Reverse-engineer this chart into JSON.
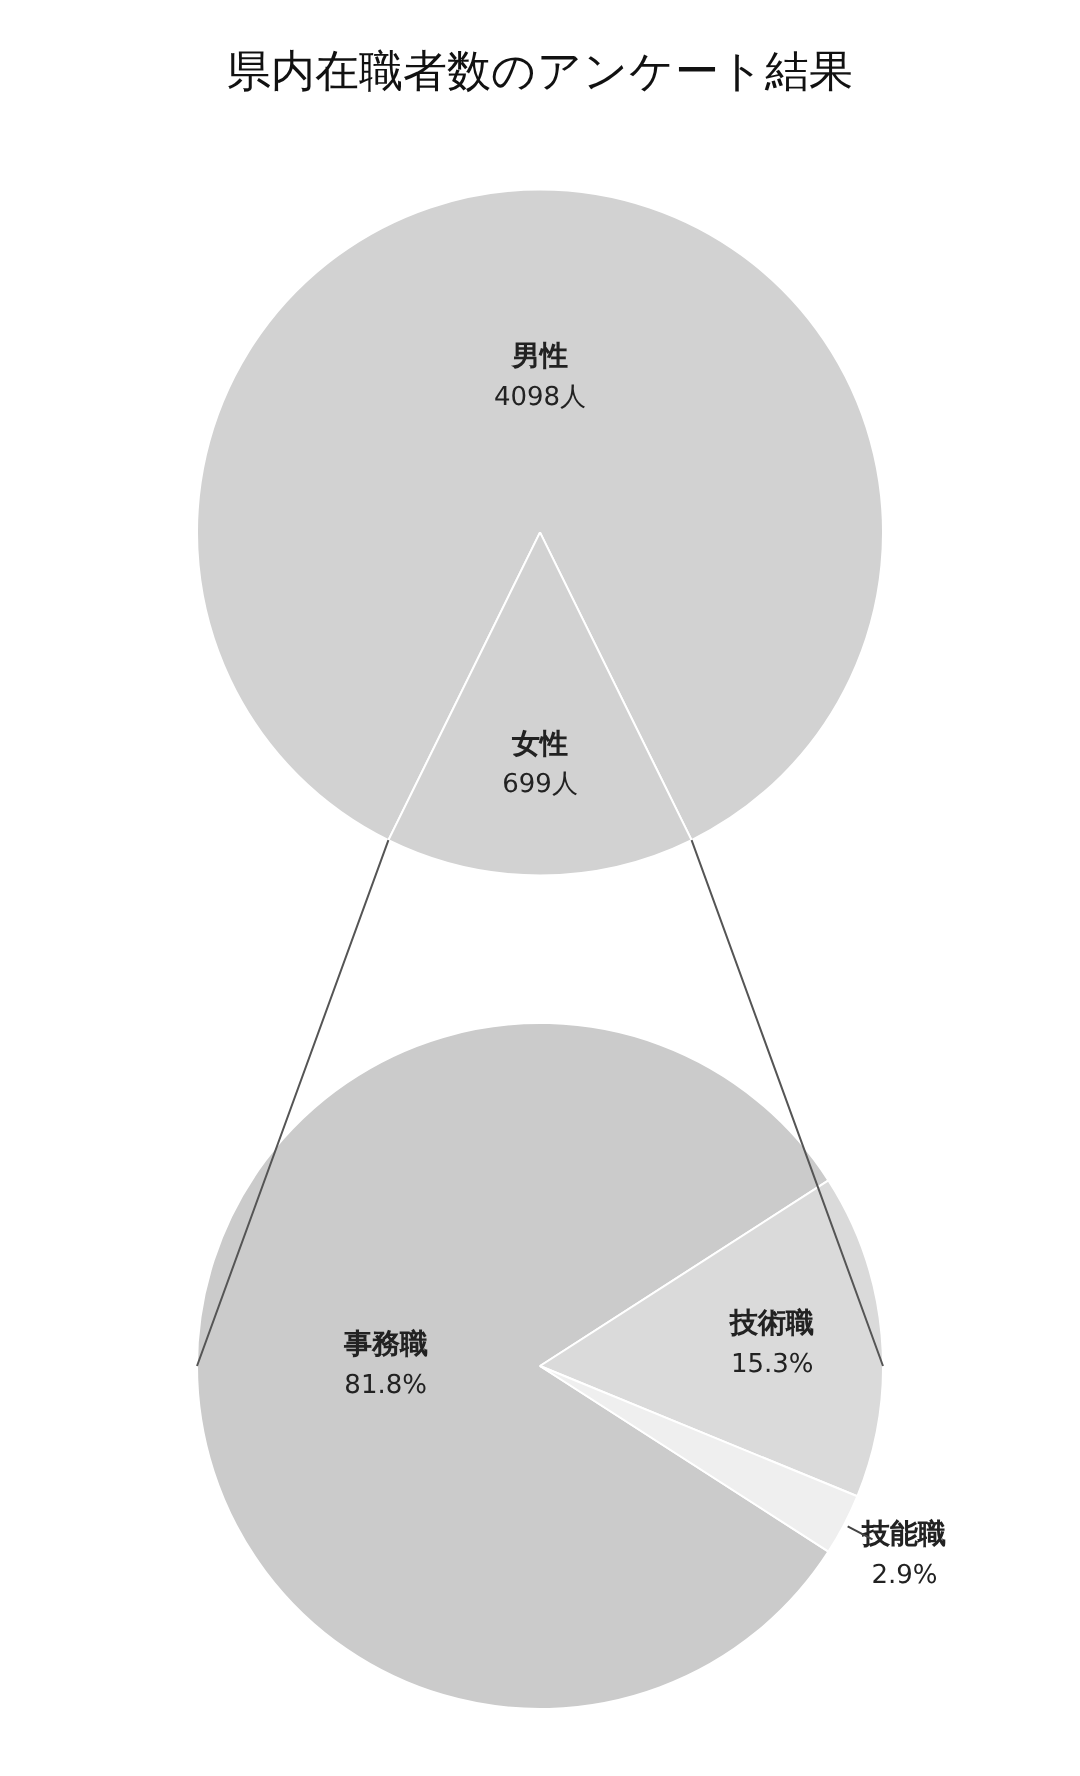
{
  "chart_data": [
    {
      "type": "pie",
      "title": "県内在職者数のアンケート結果",
      "categories": [
        "男性",
        "女性"
      ],
      "values": [
        4098,
        699
      ],
      "value_labels": [
        "4098人",
        "699人"
      ],
      "colors": [
        "#d2d2d2",
        "#d2d2d2"
      ],
      "legend": false
    },
    {
      "type": "pie",
      "categories": [
        "事務職",
        "技術職",
        "技能職"
      ],
      "values": [
        81.8,
        15.3,
        2.9
      ],
      "value_labels": [
        "81.8%",
        "15.3%",
        "2.9%"
      ],
      "colors": [
        "#cbcbcb",
        "#dadada",
        "#efefef"
      ],
      "legend": false
    }
  ]
}
